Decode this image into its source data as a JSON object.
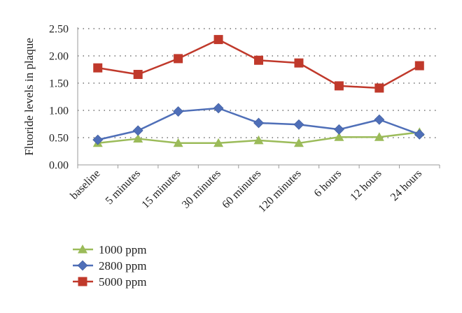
{
  "chart_data": {
    "type": "line",
    "ylabel": "Fluoride levels in plaque",
    "xlabel": "",
    "categories": [
      "baseline",
      "5 minutes",
      "15 minutes",
      "30 minutes",
      "60 minutes",
      "120 minutes",
      "6 hours",
      "12 hours",
      "24 hours"
    ],
    "ylim": [
      0,
      2.5
    ],
    "yticks": [
      "0.00",
      "0.50",
      "1.00",
      "1.50",
      "2.00",
      "2.50"
    ],
    "grid": true,
    "legend_position": "bottom-left",
    "series": [
      {
        "name": "1000 ppm",
        "color": "#9BBB59",
        "marker": "triangle",
        "values": [
          0.4,
          0.48,
          0.4,
          0.4,
          0.45,
          0.4,
          0.51,
          0.51,
          0.6
        ]
      },
      {
        "name": "2800 ppm",
        "color": "#4F6FB8",
        "marker": "diamond",
        "values": [
          0.46,
          0.63,
          0.98,
          1.04,
          0.77,
          0.74,
          0.65,
          0.83,
          0.56
        ]
      },
      {
        "name": "5000 ppm",
        "color": "#C0392B",
        "marker": "square",
        "values": [
          1.78,
          1.66,
          1.95,
          2.3,
          1.92,
          1.87,
          1.45,
          1.41,
          1.82
        ]
      }
    ]
  }
}
